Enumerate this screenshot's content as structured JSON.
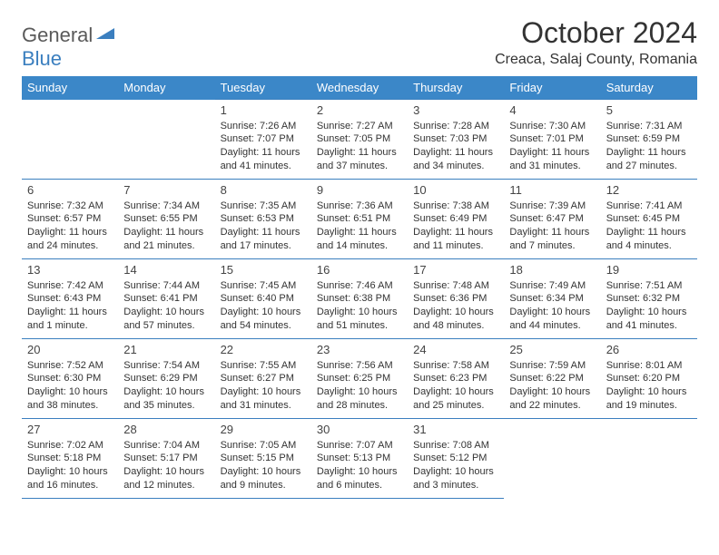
{
  "colors": {
    "header_bg": "#3b87c8",
    "header_text": "#ffffff",
    "border": "#3b7fbf",
    "body_text": "#333333",
    "logo_gray": "#5a5a5a",
    "logo_blue": "#3b7fbf",
    "background": "#ffffff"
  },
  "logo": {
    "part1": "General",
    "part2": "Blue"
  },
  "title": "October 2024",
  "location": "Creaca, Salaj County, Romania",
  "day_headers": [
    "Sunday",
    "Monday",
    "Tuesday",
    "Wednesday",
    "Thursday",
    "Friday",
    "Saturday"
  ],
  "weeks": [
    [
      null,
      null,
      {
        "n": "1",
        "sr": "7:26 AM",
        "ss": "7:07 PM",
        "dl": "11 hours and 41 minutes."
      },
      {
        "n": "2",
        "sr": "7:27 AM",
        "ss": "7:05 PM",
        "dl": "11 hours and 37 minutes."
      },
      {
        "n": "3",
        "sr": "7:28 AM",
        "ss": "7:03 PM",
        "dl": "11 hours and 34 minutes."
      },
      {
        "n": "4",
        "sr": "7:30 AM",
        "ss": "7:01 PM",
        "dl": "11 hours and 31 minutes."
      },
      {
        "n": "5",
        "sr": "7:31 AM",
        "ss": "6:59 PM",
        "dl": "11 hours and 27 minutes."
      }
    ],
    [
      {
        "n": "6",
        "sr": "7:32 AM",
        "ss": "6:57 PM",
        "dl": "11 hours and 24 minutes."
      },
      {
        "n": "7",
        "sr": "7:34 AM",
        "ss": "6:55 PM",
        "dl": "11 hours and 21 minutes."
      },
      {
        "n": "8",
        "sr": "7:35 AM",
        "ss": "6:53 PM",
        "dl": "11 hours and 17 minutes."
      },
      {
        "n": "9",
        "sr": "7:36 AM",
        "ss": "6:51 PM",
        "dl": "11 hours and 14 minutes."
      },
      {
        "n": "10",
        "sr": "7:38 AM",
        "ss": "6:49 PM",
        "dl": "11 hours and 11 minutes."
      },
      {
        "n": "11",
        "sr": "7:39 AM",
        "ss": "6:47 PM",
        "dl": "11 hours and 7 minutes."
      },
      {
        "n": "12",
        "sr": "7:41 AM",
        "ss": "6:45 PM",
        "dl": "11 hours and 4 minutes."
      }
    ],
    [
      {
        "n": "13",
        "sr": "7:42 AM",
        "ss": "6:43 PM",
        "dl": "11 hours and 1 minute."
      },
      {
        "n": "14",
        "sr": "7:44 AM",
        "ss": "6:41 PM",
        "dl": "10 hours and 57 minutes."
      },
      {
        "n": "15",
        "sr": "7:45 AM",
        "ss": "6:40 PM",
        "dl": "10 hours and 54 minutes."
      },
      {
        "n": "16",
        "sr": "7:46 AM",
        "ss": "6:38 PM",
        "dl": "10 hours and 51 minutes."
      },
      {
        "n": "17",
        "sr": "7:48 AM",
        "ss": "6:36 PM",
        "dl": "10 hours and 48 minutes."
      },
      {
        "n": "18",
        "sr": "7:49 AM",
        "ss": "6:34 PM",
        "dl": "10 hours and 44 minutes."
      },
      {
        "n": "19",
        "sr": "7:51 AM",
        "ss": "6:32 PM",
        "dl": "10 hours and 41 minutes."
      }
    ],
    [
      {
        "n": "20",
        "sr": "7:52 AM",
        "ss": "6:30 PM",
        "dl": "10 hours and 38 minutes."
      },
      {
        "n": "21",
        "sr": "7:54 AM",
        "ss": "6:29 PM",
        "dl": "10 hours and 35 minutes."
      },
      {
        "n": "22",
        "sr": "7:55 AM",
        "ss": "6:27 PM",
        "dl": "10 hours and 31 minutes."
      },
      {
        "n": "23",
        "sr": "7:56 AM",
        "ss": "6:25 PM",
        "dl": "10 hours and 28 minutes."
      },
      {
        "n": "24",
        "sr": "7:58 AM",
        "ss": "6:23 PM",
        "dl": "10 hours and 25 minutes."
      },
      {
        "n": "25",
        "sr": "7:59 AM",
        "ss": "6:22 PM",
        "dl": "10 hours and 22 minutes."
      },
      {
        "n": "26",
        "sr": "8:01 AM",
        "ss": "6:20 PM",
        "dl": "10 hours and 19 minutes."
      }
    ],
    [
      {
        "n": "27",
        "sr": "7:02 AM",
        "ss": "5:18 PM",
        "dl": "10 hours and 16 minutes."
      },
      {
        "n": "28",
        "sr": "7:04 AM",
        "ss": "5:17 PM",
        "dl": "10 hours and 12 minutes."
      },
      {
        "n": "29",
        "sr": "7:05 AM",
        "ss": "5:15 PM",
        "dl": "10 hours and 9 minutes."
      },
      {
        "n": "30",
        "sr": "7:07 AM",
        "ss": "5:13 PM",
        "dl": "10 hours and 6 minutes."
      },
      {
        "n": "31",
        "sr": "7:08 AM",
        "ss": "5:12 PM",
        "dl": "10 hours and 3 minutes."
      },
      null,
      null
    ]
  ],
  "labels": {
    "sunrise": "Sunrise: ",
    "sunset": "Sunset: ",
    "daylight": "Daylight: "
  }
}
